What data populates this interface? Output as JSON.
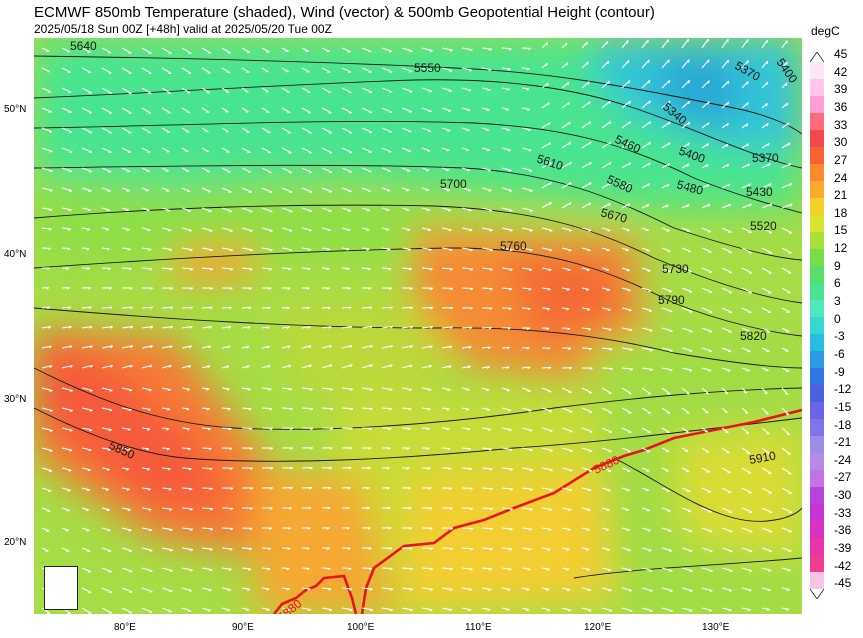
{
  "header": {
    "title": "ECMWF 850mb Temperature (shaded), Wind (vector) & 500mb Geopotential Height (contour)",
    "subtitle": "2025/05/18 Sun 00Z [+48h] valid at 2025/05/20 Tue 00Z"
  },
  "map": {
    "lat_labels": [
      "50°N",
      "40°N",
      "30°N",
      "20°N"
    ],
    "lon_labels": [
      "80°E",
      "90°E",
      "100°E",
      "110°E",
      "120°E",
      "130°E"
    ],
    "contour_labels": [
      "5640",
      "5550",
      "5400",
      "5370",
      "5340",
      "5460",
      "5400",
      "5370",
      "5610",
      "5580",
      "5480",
      "5430",
      "5700",
      "5670",
      "5520",
      "5760",
      "5730",
      "5790",
      "5820",
      "5850",
      "5880",
      "5910",
      "5880"
    ],
    "highlight_contour": "5880",
    "colors": {
      "highlight_contour": "#e8141c",
      "contour": "#1a1a1a",
      "wind": "#ffffff"
    }
  },
  "colorbar": {
    "unit": "degC",
    "ticks": [
      "45",
      "42",
      "39",
      "36",
      "33",
      "30",
      "27",
      "24",
      "21",
      "18",
      "15",
      "12",
      "9",
      "6",
      "3",
      "0",
      "-3",
      "-6",
      "-9",
      "-12",
      "-15",
      "-18",
      "-21",
      "-24",
      "-27",
      "-30",
      "-33",
      "-36",
      "-39",
      "-42",
      "-45"
    ],
    "colors": [
      "#ffe6f5",
      "#ffc6ec",
      "#ff9fd8",
      "#ff6b7a",
      "#f4484a",
      "#f86232",
      "#fb8a2d",
      "#fbab2c",
      "#f2d22a",
      "#d7e42b",
      "#a9e038",
      "#79dd4a",
      "#56df6a",
      "#49e392",
      "#4fe7bb",
      "#34d9cf",
      "#2bbde0",
      "#2a9be4",
      "#2f78e4",
      "#4a62de",
      "#6a64e6",
      "#8273ea",
      "#9e8ae8",
      "#b48be4",
      "#c272e4",
      "#b944dd",
      "#c932d3",
      "#d932c3",
      "#e836a8",
      "#f03c92",
      "#f5c4e6"
    ]
  }
}
